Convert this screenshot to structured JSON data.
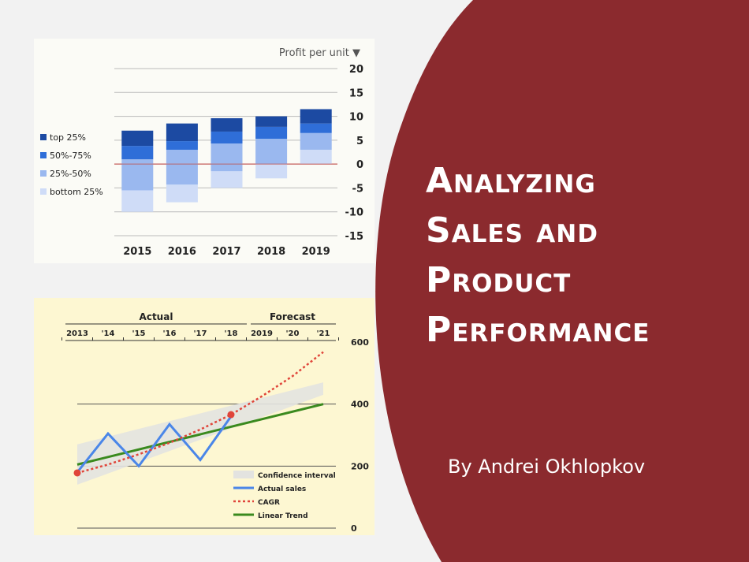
{
  "slide": {
    "background_color": "#f2f2f2",
    "accent_color": "#8b2a2e",
    "title_lines": [
      "Analyzing",
      "Sales and",
      "Product",
      "Performance"
    ],
    "byline": "By Andrei Okhlopkov"
  },
  "chart_data": [
    {
      "type": "bar",
      "stacked": true,
      "title": "Profit per unit ▼",
      "categories": [
        "2015",
        "2016",
        "2017",
        "2018",
        "2019"
      ],
      "series": [
        {
          "name": "bottom 25%",
          "color": "#cfdcf7",
          "ranges": [
            [
              -10,
              -5.5
            ],
            [
              -8,
              -4.3
            ],
            [
              -5,
              -1.5
            ],
            [
              -3,
              0
            ],
            [
              0,
              3
            ]
          ]
        },
        {
          "name": "25%-50%",
          "color": "#9ab8ef",
          "ranges": [
            [
              -5.5,
              1
            ],
            [
              -4.3,
              3
            ],
            [
              -1.5,
              4.3
            ],
            [
              0,
              5.3
            ],
            [
              3,
              6.5
            ]
          ]
        },
        {
          "name": "50%-75%",
          "color": "#2f6ed8",
          "ranges": [
            [
              1,
              3.8
            ],
            [
              3,
              4.8
            ],
            [
              4.3,
              6.8
            ],
            [
              5.3,
              7.8
            ],
            [
              6.5,
              8.5
            ]
          ]
        },
        {
          "name": "top 25%",
          "color": "#1c4aa2",
          "ranges": [
            [
              3.8,
              7
            ],
            [
              4.8,
              8.5
            ],
            [
              6.8,
              9.6
            ],
            [
              7.8,
              10
            ],
            [
              8.5,
              11.5
            ]
          ]
        }
      ],
      "legend": [
        "top 25%",
        "50%-75%",
        "25%-50%",
        "bottom 25%"
      ],
      "yticks": [
        20,
        15,
        10,
        5,
        0,
        -5,
        -10,
        -15
      ],
      "ylim": [
        -15,
        20
      ],
      "grid": true,
      "legend_position": "left"
    },
    {
      "type": "line",
      "header_groups": [
        "Actual",
        "Forecast"
      ],
      "x_labels": [
        "2013",
        "'14",
        "'15",
        "'16",
        "'17",
        "'18",
        "2019",
        "'20",
        "'21"
      ],
      "yticks": [
        600,
        400,
        200,
        0
      ],
      "ylim": [
        0,
        600
      ],
      "series": [
        {
          "name": "Confidence interval",
          "color": "#e3e3e0",
          "lower": [
            140,
            430
          ],
          "upper": [
            270,
            470
          ]
        },
        {
          "name": "Actual sales",
          "color": "#4a86e8",
          "x": [
            0,
            1,
            2,
            3,
            4,
            5
          ],
          "y": [
            180,
            305,
            200,
            335,
            220,
            360
          ]
        },
        {
          "name": "CAGR",
          "color": "#e0453a",
          "x": [
            0,
            1,
            2,
            3,
            4,
            5,
            6,
            7,
            8
          ],
          "y": [
            178,
            205,
            238,
            275,
            318,
            366,
            425,
            490,
            568
          ]
        },
        {
          "name": "Linear Trend",
          "color": "#3a8a1e",
          "x": [
            0,
            8
          ],
          "y": [
            205,
            400
          ]
        }
      ],
      "markers": [
        {
          "x": 0,
          "y": 178
        },
        {
          "x": 5,
          "y": 366
        }
      ],
      "legend_position": "bottom-right"
    }
  ]
}
